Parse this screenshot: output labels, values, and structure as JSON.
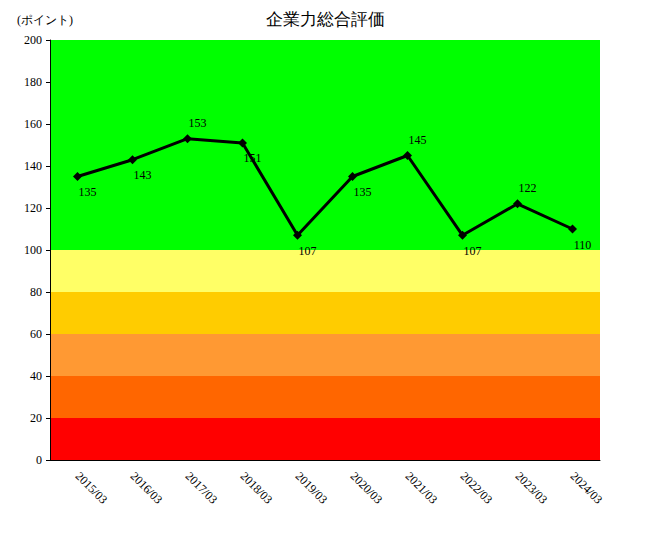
{
  "chart_data": {
    "type": "line",
    "title": "企業力総合評価",
    "y_label": "(ポイント)",
    "categories": [
      "2015/03",
      "2016/03",
      "2017/03",
      "2018/03",
      "2019/03",
      "2020/03",
      "2021/03",
      "2022/03",
      "2023/03",
      "2024/03"
    ],
    "values": [
      135,
      143,
      153,
      151,
      107,
      135,
      145,
      107,
      122,
      110
    ],
    "color": "#000000",
    "marker": "diamond",
    "data_labels": true,
    "grid": false,
    "ylim": [
      0,
      200
    ],
    "yticks": [
      0,
      20,
      40,
      60,
      80,
      100,
      120,
      140,
      160,
      180,
      200
    ],
    "bands": [
      {
        "from": 0,
        "to": 20,
        "color": "#ff0000"
      },
      {
        "from": 20,
        "to": 40,
        "color": "#ff6600"
      },
      {
        "from": 40,
        "to": 60,
        "color": "#ff9933"
      },
      {
        "from": 60,
        "to": 80,
        "color": "#ffcc00"
      },
      {
        "from": 80,
        "to": 100,
        "color": "#ffff66"
      },
      {
        "from": 100,
        "to": 200,
        "color": "#00ff00"
      }
    ]
  }
}
